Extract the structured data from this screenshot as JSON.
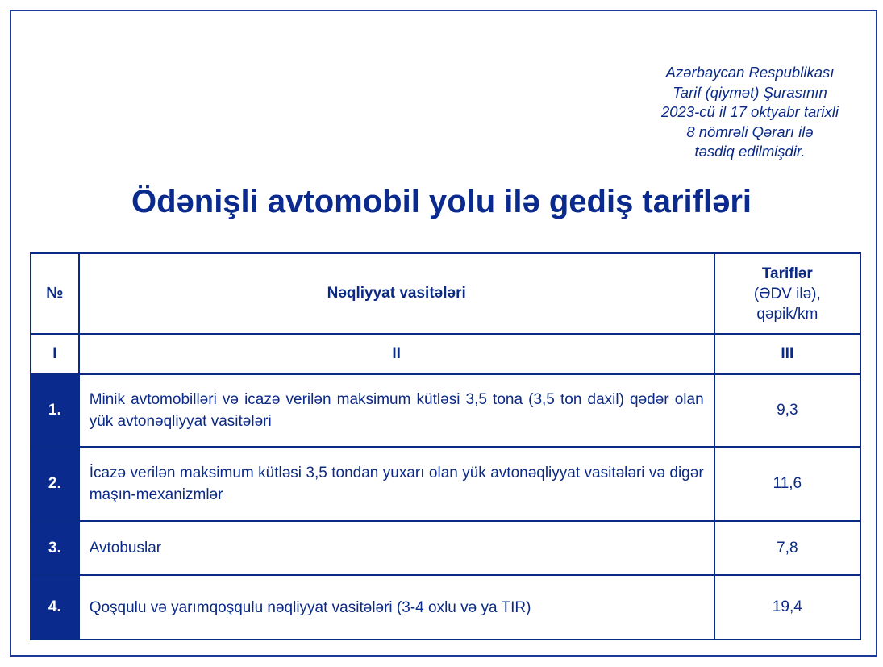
{
  "approval": [
    "Azərbaycan Respublikası",
    "Tarif (qiymət) Şurasının",
    "2023-cü il 17 oktyabr tarixli",
    "8 nömrəli Qərarı ilə",
    "təsdiq edilmişdir."
  ],
  "title": "Ödənişli avtomobil yolu ilə gediş tarifləri",
  "table": {
    "headers": {
      "no": "№",
      "vehicles": "Nəqliyyat vasitələri",
      "tariff_title": "Tariflər",
      "tariff_vat": "(ƏDV ilə),",
      "tariff_unit": "qəpik/km"
    },
    "roman": [
      "I",
      "II",
      "III"
    ],
    "rows": [
      {
        "no": "1.",
        "vehicle": "Minik avtomobilləri və icazə verilən maksimum kütləsi 3,5 tona (3,5 ton daxil) qədər olan yük avtonəqliyyat vasitələri",
        "tariff": "9,3"
      },
      {
        "no": "2.",
        "vehicle": "İcazə verilən maksimum kütləsi 3,5 tondan yuxarı olan yük avtonəqliyyat vasitələri və digər maşın-mexanizmlər",
        "tariff": "11,6"
      },
      {
        "no": "3.",
        "vehicle": "Avtobuslar",
        "tariff": "7,8"
      },
      {
        "no": "4.",
        "vehicle": "Qoşqulu və yarımqoşqulu nəqliyyat vasitələri (3-4 oxlu və ya TIR)",
        "tariff": "19,4"
      }
    ]
  },
  "colors": {
    "primary": "#0b2a8e",
    "row_number_bg": "#0a2a8e"
  }
}
